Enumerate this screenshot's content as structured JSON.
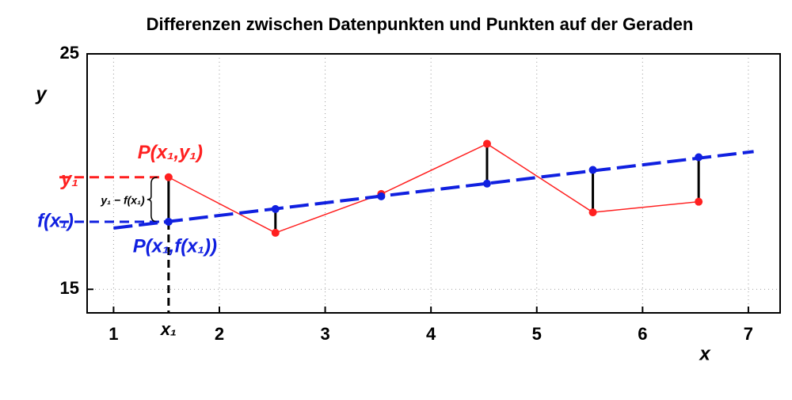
{
  "chart_data": {
    "type": "line",
    "title": "Differenzen zwischen Datenpunkten und Punkten auf der Geraden",
    "xlabel": "x",
    "ylabel": "y",
    "xlim": [
      0.75,
      7.3
    ],
    "ylim": [
      14,
      25
    ],
    "xticks": [
      1,
      2,
      3,
      4,
      5,
      6,
      7
    ],
    "yticks": [
      15,
      25
    ],
    "grid": true,
    "series": [
      {
        "x": [
          1.52,
          2.53,
          3.53,
          4.53,
          5.53,
          6.53
        ],
        "values": [
          19.76,
          17.4,
          19.05,
          21.18,
          18.27,
          18.72
        ],
        "color": "#ff2020"
      },
      {
        "x": [
          1,
          7.05
        ],
        "values": [
          17.6,
          20.85
        ],
        "color": "#1020e0",
        "dashed": true
      },
      {
        "x": [
          1.52,
          2.53,
          3.53,
          4.53,
          5.53,
          6.53
        ],
        "values": [
          17.87,
          18.41,
          18.95,
          19.49,
          20.07,
          20.61
        ],
        "color": "#1020e0"
      }
    ],
    "annotations": {
      "point_data": "P(x₁,y₁)",
      "point_fit": "P(x₁,f(x₁))",
      "y1": "y₁",
      "fx1": "f(x₁)",
      "difference": "y₁ − f(x₁)",
      "x1": "x₁"
    }
  }
}
